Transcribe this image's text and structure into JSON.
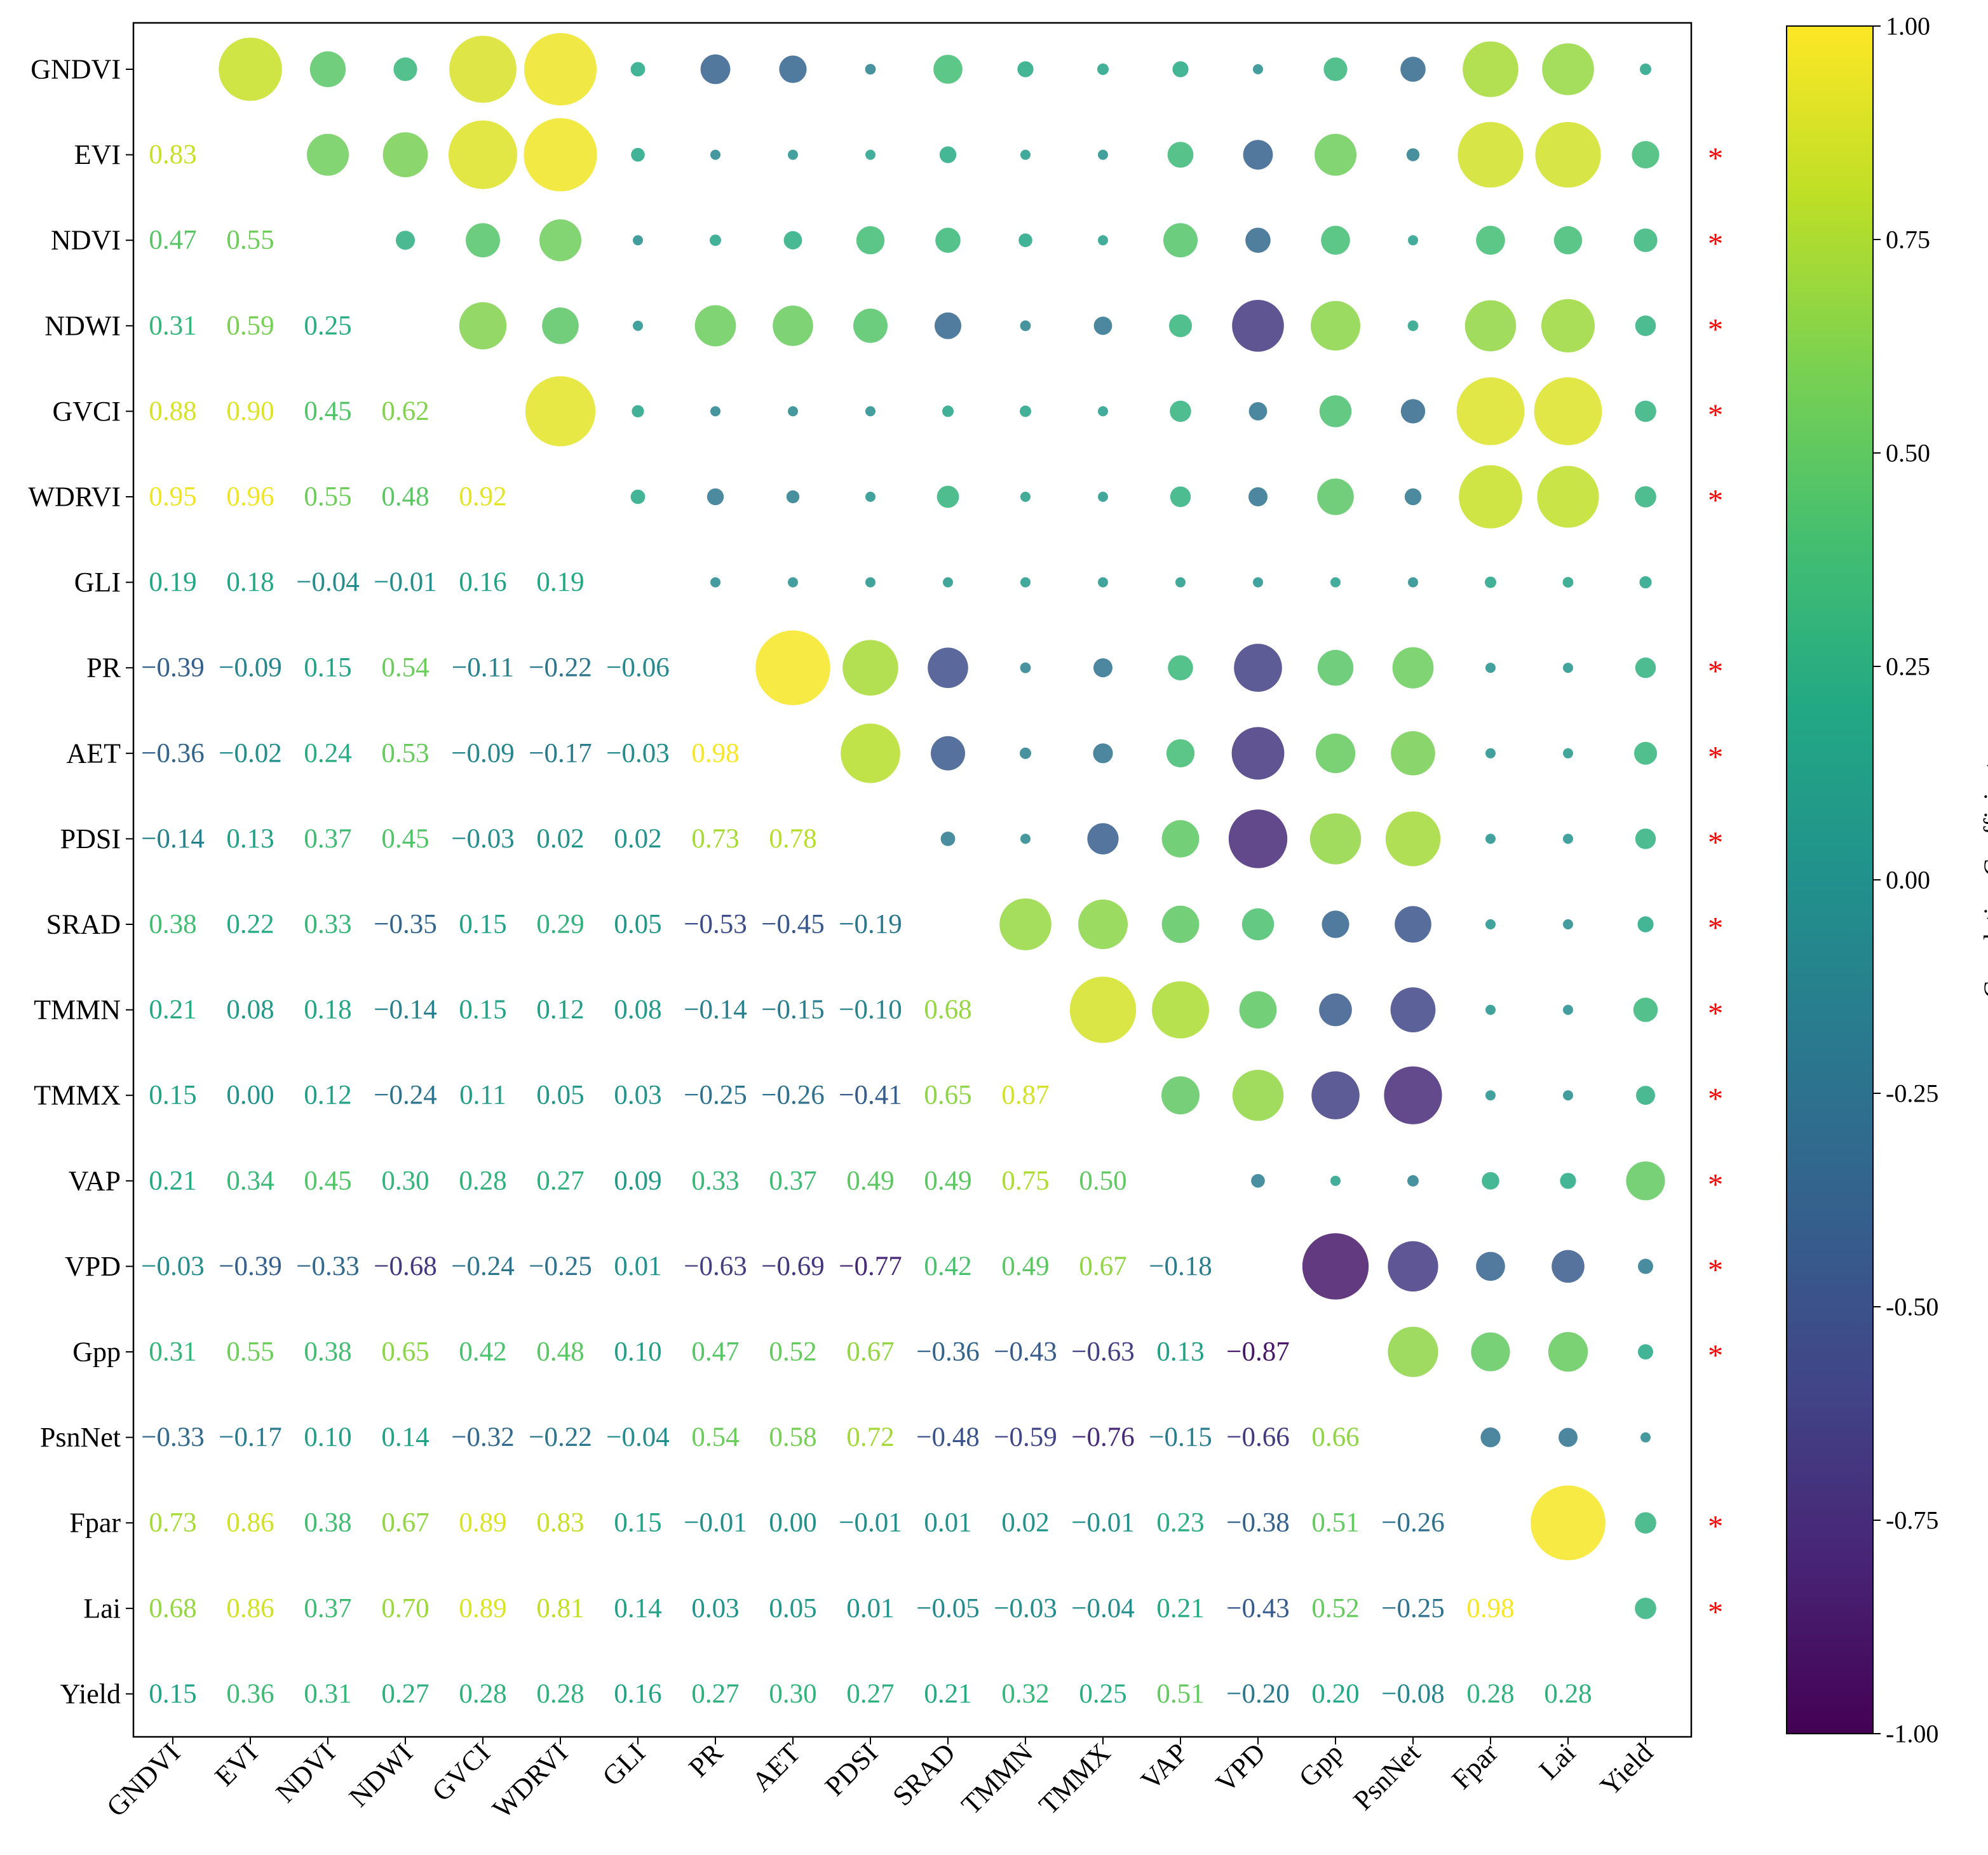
{
  "chart_data": {
    "type": "heatmap",
    "subtype": "correlation-matrix",
    "variables": [
      "GNDVI",
      "EVI",
      "NDVI",
      "NDWI",
      "GVCI",
      "WDRVI",
      "GLI",
      "PR",
      "AET",
      "PDSI",
      "SRAD",
      "TMMN",
      "TMMX",
      "VAP",
      "VPD",
      "Gpp",
      "PsnNet",
      "Fpar",
      "Lai",
      "Yield"
    ],
    "lower_values": [
      [],
      [
        0.83
      ],
      [
        0.47,
        0.55
      ],
      [
        0.31,
        0.59,
        0.25
      ],
      [
        0.88,
        0.9,
        0.45,
        0.62
      ],
      [
        0.95,
        0.96,
        0.55,
        0.48,
        0.92
      ],
      [
        0.19,
        0.18,
        -0.04,
        -0.01,
        0.16,
        0.19
      ],
      [
        -0.39,
        -0.09,
        0.15,
        0.54,
        -0.11,
        -0.22,
        -0.06
      ],
      [
        -0.36,
        -0.02,
        0.24,
        0.53,
        -0.09,
        -0.17,
        -0.03,
        0.98
      ],
      [
        -0.14,
        0.13,
        0.37,
        0.45,
        -0.03,
        0.02,
        0.02,
        0.73,
        0.78
      ],
      [
        0.38,
        0.22,
        0.33,
        -0.35,
        0.15,
        0.29,
        0.05,
        -0.53,
        -0.45,
        -0.19
      ],
      [
        0.21,
        0.08,
        0.18,
        -0.14,
        0.15,
        0.12,
        0.08,
        -0.14,
        -0.15,
        -0.1,
        0.68
      ],
      [
        0.15,
        0.0,
        0.12,
        -0.24,
        0.11,
        0.05,
        0.03,
        -0.25,
        -0.26,
        -0.41,
        0.65,
        0.87
      ],
      [
        0.21,
        0.34,
        0.45,
        0.3,
        0.28,
        0.27,
        0.09,
        0.33,
        0.37,
        0.49,
        0.49,
        0.75,
        0.5
      ],
      [
        -0.03,
        -0.39,
        -0.33,
        -0.68,
        -0.24,
        -0.25,
        0.01,
        -0.63,
        -0.69,
        -0.77,
        0.42,
        0.49,
        0.67,
        -0.18
      ],
      [
        0.31,
        0.55,
        0.38,
        0.65,
        0.42,
        0.48,
        0.1,
        0.47,
        0.52,
        0.67,
        -0.36,
        -0.43,
        -0.63,
        0.13,
        -0.87
      ],
      [
        -0.33,
        -0.17,
        0.1,
        0.14,
        -0.32,
        -0.22,
        -0.04,
        0.54,
        0.58,
        0.72,
        -0.48,
        -0.59,
        -0.76,
        -0.15,
        -0.66,
        0.66
      ],
      [
        0.73,
        0.86,
        0.38,
        0.67,
        0.89,
        0.83,
        0.15,
        -0.01,
        0.0,
        -0.01,
        0.01,
        0.02,
        -0.01,
        0.23,
        -0.38,
        0.51,
        -0.26
      ],
      [
        0.68,
        0.86,
        0.37,
        0.7,
        0.89,
        0.81,
        0.14,
        0.03,
        0.05,
        0.01,
        -0.05,
        -0.03,
        -0.04,
        0.21,
        -0.43,
        0.52,
        -0.25,
        0.98
      ],
      [
        0.15,
        0.36,
        0.31,
        0.27,
        0.28,
        0.28,
        0.16,
        0.27,
        0.3,
        0.27,
        0.21,
        0.32,
        0.25,
        0.51,
        -0.2,
        0.2,
        -0.08,
        0.28,
        0.28
      ]
    ],
    "lower_labels": [
      [],
      [
        "0.83"
      ],
      [
        "0.47",
        "0.55"
      ],
      [
        "0.31",
        "0.59",
        "0.25"
      ],
      [
        "0.88",
        "0.90",
        "0.45",
        "0.62"
      ],
      [
        "0.95",
        "0.96",
        "0.55",
        "0.48",
        "0.92"
      ],
      [
        "0.19",
        "0.18",
        "−0.04",
        "−0.01",
        "0.16",
        "0.19"
      ],
      [
        "−0.39",
        "−0.09",
        "0.15",
        "0.54",
        "−0.11",
        "−0.22",
        "−0.06"
      ],
      [
        "−0.36",
        "−0.02",
        "0.24",
        "0.53",
        "−0.09",
        "−0.17",
        "−0.03",
        "0.98"
      ],
      [
        "−0.14",
        "0.13",
        "0.37",
        "0.45",
        "−0.03",
        "0.02",
        "0.02",
        "0.73",
        "0.78"
      ],
      [
        "0.38",
        "0.22",
        "0.33",
        "−0.35",
        "0.15",
        "0.29",
        "0.05",
        "−0.53",
        "−0.45",
        "−0.19"
      ],
      [
        "0.21",
        "0.08",
        "0.18",
        "−0.14",
        "0.15",
        "0.12",
        "0.08",
        "−0.14",
        "−0.15",
        "−0.10",
        "0.68"
      ],
      [
        "0.15",
        "0.00",
        "0.12",
        "−0.24",
        "0.11",
        "0.05",
        "0.03",
        "−0.25",
        "−0.26",
        "−0.41",
        "0.65",
        "0.87"
      ],
      [
        "0.21",
        "0.34",
        "0.45",
        "0.30",
        "0.28",
        "0.27",
        "0.09",
        "0.33",
        "0.37",
        "0.49",
        "0.49",
        "0.75",
        "0.50"
      ],
      [
        "−0.03",
        "−0.39",
        "−0.33",
        "−0.68",
        "−0.24",
        "−0.25",
        "0.01",
        "−0.63",
        "−0.69",
        "−0.77",
        "0.42",
        "0.49",
        "0.67",
        "−0.18"
      ],
      [
        "0.31",
        "0.55",
        "0.38",
        "0.65",
        "0.42",
        "0.48",
        "0.10",
        "0.47",
        "0.52",
        "0.67",
        "−0.36",
        "−0.43",
        "−0.63",
        "0.13",
        "−0.87"
      ],
      [
        "−0.33",
        "−0.17",
        "0.10",
        "0.14",
        "−0.32",
        "−0.22",
        "−0.04",
        "0.54",
        "0.58",
        "0.72",
        "−0.48",
        "−0.59",
        "−0.76",
        "−0.15",
        "−0.66",
        "0.66"
      ],
      [
        "0.73",
        "0.86",
        "0.38",
        "0.67",
        "0.89",
        "0.83",
        "0.15",
        "−0.01",
        "0.00",
        "−0.01",
        "0.01",
        "0.02",
        "−0.01",
        "0.23",
        "−0.38",
        "0.51",
        "−0.26"
      ],
      [
        "0.68",
        "0.86",
        "0.37",
        "0.70",
        "0.89",
        "0.81",
        "0.14",
        "0.03",
        "0.05",
        "0.01",
        "−0.05",
        "−0.03",
        "−0.04",
        "0.21",
        "−0.43",
        "0.52",
        "−0.25",
        "0.98"
      ],
      [
        "0.15",
        "0.36",
        "0.31",
        "0.27",
        "0.28",
        "0.28",
        "0.16",
        "0.27",
        "0.30",
        "0.27",
        "0.21",
        "0.32",
        "0.25",
        "0.51",
        "−0.20",
        "0.20",
        "−0.08",
        "0.28",
        "0.28"
      ]
    ],
    "upper_region": "circles: size = |r|, color = r",
    "significance_marker": "*",
    "significant_rows": [
      "EVI",
      "NDVI",
      "NDWI",
      "GVCI",
      "WDRVI",
      "PR",
      "AET",
      "PDSI",
      "SRAD",
      "TMMN",
      "TMMX",
      "VAP",
      "VPD",
      "Gpp",
      "Fpar",
      "Lai"
    ],
    "colorbar": {
      "label": "Correlation Coefficient",
      "range": [
        -1,
        1
      ],
      "colormap": "viridis",
      "tick_labels": [
        "-1.00",
        "-0.75",
        "-0.50",
        "-0.25",
        "0.00",
        "0.25",
        "0.50",
        "0.75",
        "1.00"
      ],
      "tick_values": [
        -1,
        -0.75,
        -0.5,
        -0.25,
        0,
        0.25,
        0.5,
        0.75,
        1
      ]
    }
  },
  "colors": {
    "significance": "#ff0000",
    "axis": "#000000",
    "background": "#ffffff"
  }
}
